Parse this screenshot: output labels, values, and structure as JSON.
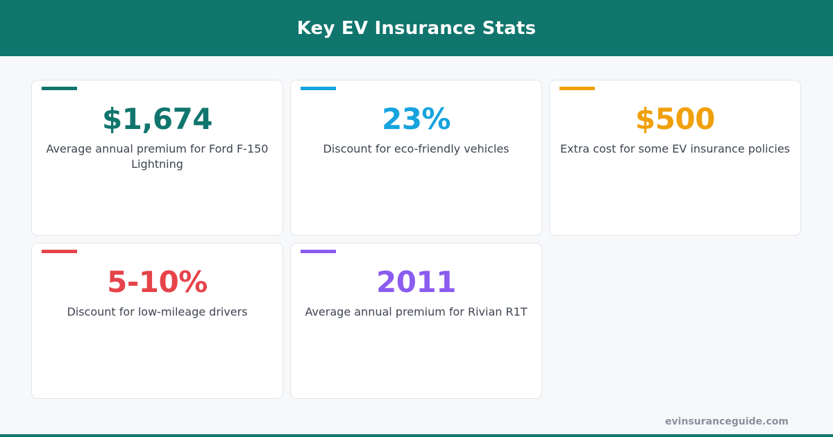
{
  "header": {
    "title": "Key EV Insurance Stats",
    "color": "#10756d"
  },
  "stats": [
    {
      "value": "$1,674",
      "description": "Average annual premium for Ford F-150 Lightning",
      "color": "#10756d"
    },
    {
      "value": "23%",
      "description": "Discount for eco-friendly vehicles",
      "color": "#16a3de"
    },
    {
      "value": "$500",
      "description": "Extra cost for some EV insurance policies",
      "color": "#f0a00c"
    },
    {
      "value": "5-10%",
      "description": "Discount for low-mileage drivers",
      "color": "#e5444a"
    },
    {
      "value": "2011",
      "description": "Average annual premium for Rivian R1T",
      "color": "#8b5cf0"
    }
  ],
  "footer": {
    "site": "evinsuranceguide.com"
  }
}
